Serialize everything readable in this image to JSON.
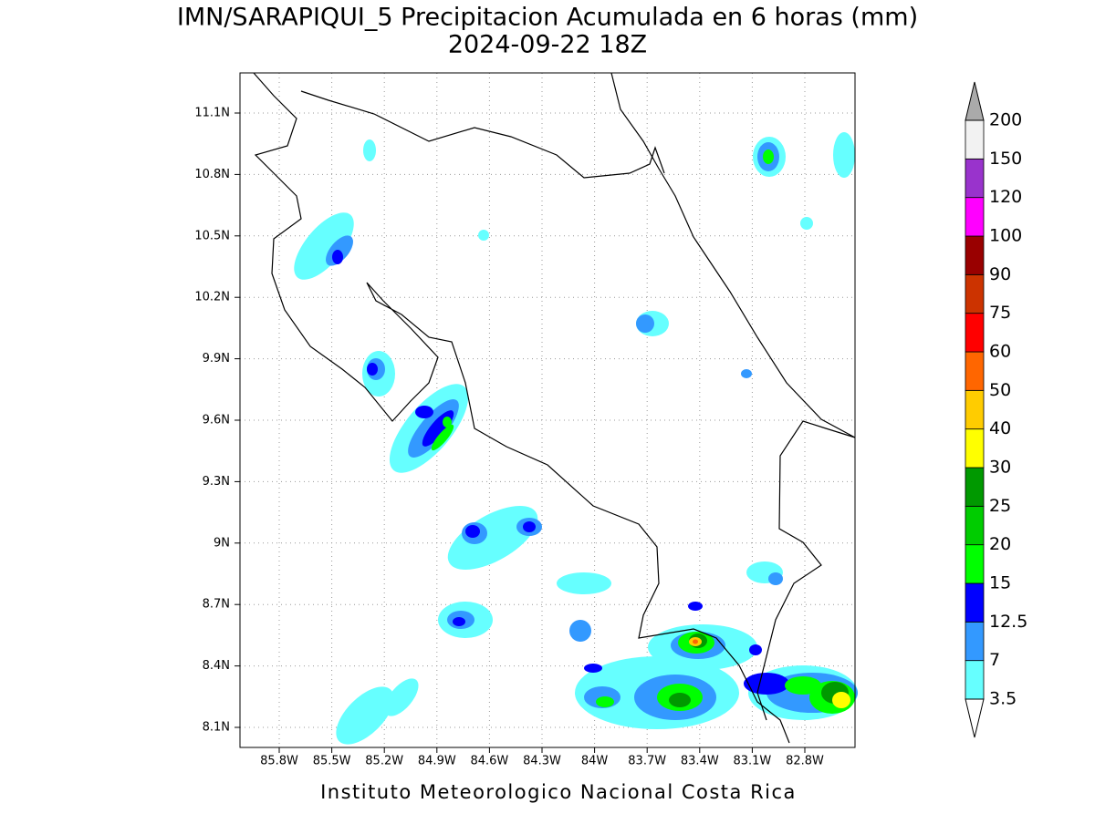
{
  "title": "IMN/SARAPIQUI_5 Precipitacion Acumulada en 6 horas (mm)",
  "subtitle": "2024-09-22 18Z",
  "lat_ticks": [
    "11.1N",
    "10.8N",
    "10.5N",
    "10.2N",
    "9.9N",
    "9.6N",
    "9.3N",
    "9N",
    "8.7N",
    "8.4N",
    "8.1N"
  ],
  "lon_ticks": [
    "85.8W",
    "85.5W",
    "85.2W",
    "84.9W",
    "84.6W",
    "84.3W",
    "84W",
    "83.7W",
    "83.4W",
    "83.1W",
    "82.8W"
  ],
  "legend": {
    "labels": [
      3.5,
      7,
      12.5,
      15,
      20,
      25,
      30,
      40,
      50,
      60,
      75,
      90,
      100,
      120,
      150,
      200
    ],
    "colors": [
      "#66ffff",
      "#3399ff",
      "#0000ff",
      "#00ff00",
      "#00cc00",
      "#009900",
      "#ffff00",
      "#ffcc00",
      "#ff6600",
      "#ff0000",
      "#cc3300",
      "#990000",
      "#ff00ff",
      "#9933cc",
      "#f2f2f2"
    ]
  },
  "footer": "Instituto Meteorologico Nacional Costa Rica"
}
